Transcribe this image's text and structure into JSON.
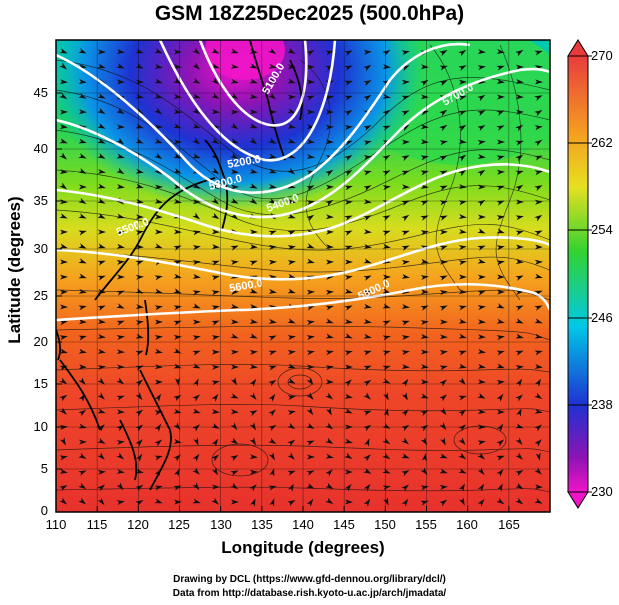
{
  "title": "GSM 18Z25Dec2025 (500.0hPa)",
  "x_axis": {
    "label": "Longitude (degrees)",
    "ticks": [
      "110",
      "115",
      "120",
      "125",
      "130",
      "135",
      "140",
      "145",
      "150",
      "155",
      "160",
      "165"
    ]
  },
  "y_axis": {
    "label": "Latitude  (degrees)",
    "ticks": [
      "45",
      "40",
      "35",
      "30",
      "25",
      "20",
      "15",
      "10",
      "5",
      "0"
    ]
  },
  "colorbar": {
    "ticks": [
      "270",
      "262",
      "254",
      "246",
      "238",
      "230"
    ]
  },
  "contour_labels": [
    "5100.0",
    "5200.0",
    "5300.0",
    "5400.0",
    "5500.0",
    "5600.0",
    "5700.0",
    "5800.0"
  ],
  "credits": {
    "line1": "Drawing by DCL (https://www.gfd-dennou.org/library/dcl/)",
    "line2": "Data from http://database.rish.kyoto-u.ac.jp/arch/jmadata/"
  },
  "chart_data": {
    "type": "heatmap",
    "title": "GSM 18Z25Dec2025 (500.0hPa)",
    "xlabel": "Longitude (degrees)",
    "ylabel": "Latitude (degrees)",
    "xlim": [
      110,
      170
    ],
    "ylim": [
      0,
      50
    ],
    "color_variable_range": [
      230,
      270
    ],
    "colorbar_ticks": [
      230,
      238,
      246,
      254,
      262,
      270
    ],
    "contour_levels": [
      5100,
      5200,
      5300,
      5400,
      5500,
      5600,
      5700,
      5800
    ],
    "features": [
      "temperature field (K)",
      "geopotential height contours",
      "wind streamlines",
      "coastlines"
    ]
  }
}
